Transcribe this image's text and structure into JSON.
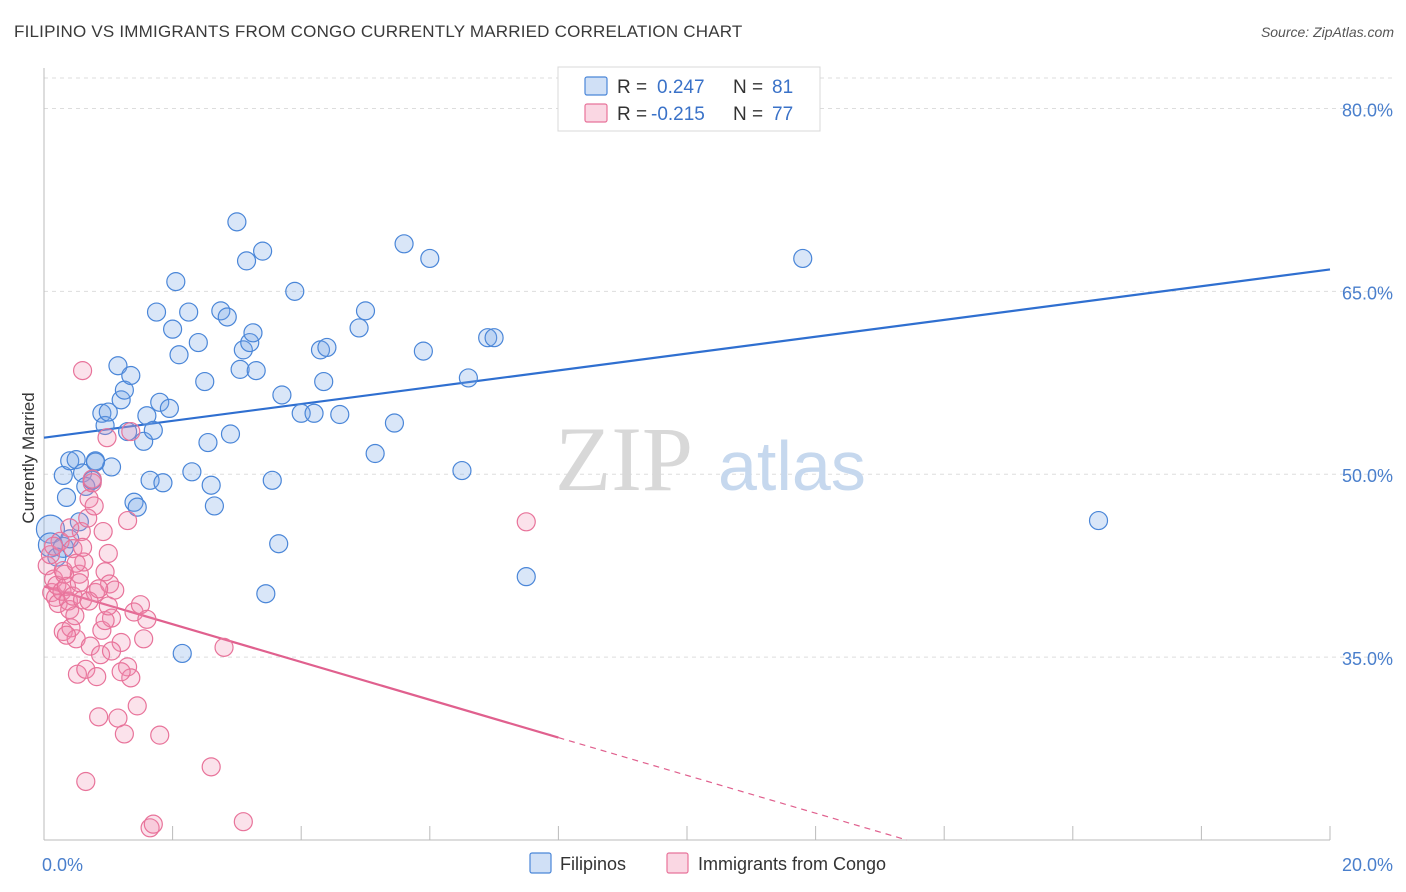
{
  "title": "FILIPINO VS IMMIGRANTS FROM CONGO CURRENTLY MARRIED CORRELATION CHART",
  "source": "Source: ZipAtlas.com",
  "watermark": {
    "zip": "ZIP",
    "atlas": "atlas"
  },
  "colors": {
    "blue": "#4a86d8",
    "blue_fill": "rgba(120,165,230,0.28)",
    "blue_line": "#2f6fd0",
    "pink": "#e8739a",
    "pink_fill": "rgba(240,140,175,0.25)",
    "pink_line": "#e0608e",
    "grid": "#dddddd",
    "tick_text": "#4a7fcc"
  },
  "legend": {
    "rows": [
      {
        "r_label": "R =",
        "r_value": "0.247",
        "n_label": "N =",
        "n_value": "81"
      },
      {
        "r_label": "R =",
        "r_value": "-0.215",
        "n_label": "N =",
        "n_value": "77"
      }
    ]
  },
  "chart_data": {
    "type": "scatter",
    "title": "FILIPINO VS IMMIGRANTS FROM CONGO CURRENTLY MARRIED CORRELATION CHART",
    "xlabel": "",
    "ylabel": "Currently Married",
    "xlim": [
      0,
      20
    ],
    "ylim": [
      20,
      82.5
    ],
    "x_tick_labels": [
      {
        "value": 0,
        "label": "0.0%"
      },
      {
        "value": 20,
        "label": "20.0%"
      }
    ],
    "y_tick_labels": [
      {
        "value": 35,
        "label": "35.0%"
      },
      {
        "value": 50,
        "label": "50.0%"
      },
      {
        "value": 65,
        "label": "65.0%"
      },
      {
        "value": 80,
        "label": "80.0%"
      }
    ],
    "x_minor_ticks": [
      0,
      2,
      4,
      6,
      8,
      10,
      12,
      14,
      16,
      18,
      20
    ],
    "series": [
      {
        "name": "Filipinos",
        "color": "blue",
        "trend": {
          "x1": 0,
          "y1": 53.0,
          "x2": 20,
          "y2": 66.8,
          "dashed_from": null
        },
        "points": [
          [
            0.1,
            45.5,
            14
          ],
          [
            0.1,
            44.2,
            12
          ],
          [
            0.3,
            44.0,
            10
          ],
          [
            0.4,
            44.7,
            9
          ],
          [
            0.3,
            49.9,
            9
          ],
          [
            0.35,
            48.1,
            9
          ],
          [
            0.4,
            51.1,
            9
          ],
          [
            0.5,
            51.2,
            9
          ],
          [
            0.6,
            50.1,
            9
          ],
          [
            0.55,
            46.1,
            9
          ],
          [
            0.65,
            49.0,
            9
          ],
          [
            0.75,
            49.5,
            9
          ],
          [
            0.8,
            51.1,
            9
          ],
          [
            0.9,
            55.0,
            9
          ],
          [
            0.95,
            54.0,
            9
          ],
          [
            1.0,
            55.1,
            9
          ],
          [
            1.05,
            50.6,
            9
          ],
          [
            1.15,
            58.9,
            9
          ],
          [
            1.2,
            56.1,
            9
          ],
          [
            1.25,
            56.9,
            9
          ],
          [
            1.3,
            53.5,
            9
          ],
          [
            1.35,
            58.1,
            9
          ],
          [
            1.4,
            47.7,
            9
          ],
          [
            1.45,
            47.3,
            9
          ],
          [
            1.55,
            52.7,
            9
          ],
          [
            1.6,
            54.8,
            9
          ],
          [
            1.65,
            49.5,
            9
          ],
          [
            1.7,
            53.6,
            9
          ],
          [
            1.75,
            63.3,
            9
          ],
          [
            1.8,
            55.9,
            9
          ],
          [
            1.85,
            49.3,
            9
          ],
          [
            1.95,
            55.4,
            9
          ],
          [
            2.0,
            61.9,
            9
          ],
          [
            2.05,
            65.8,
            9
          ],
          [
            2.1,
            59.8,
            9
          ],
          [
            2.15,
            35.3,
            9
          ],
          [
            2.25,
            63.3,
            9
          ],
          [
            2.3,
            50.2,
            9
          ],
          [
            2.4,
            60.8,
            9
          ],
          [
            2.5,
            57.6,
            9
          ],
          [
            2.55,
            52.6,
            9
          ],
          [
            2.6,
            49.1,
            9
          ],
          [
            2.65,
            47.4,
            9
          ],
          [
            2.75,
            63.4,
            9
          ],
          [
            2.85,
            62.9,
            9
          ],
          [
            2.9,
            53.3,
            9
          ],
          [
            3.0,
            70.7,
            9
          ],
          [
            3.05,
            58.6,
            9
          ],
          [
            3.1,
            60.2,
            9
          ],
          [
            3.15,
            67.5,
            9
          ],
          [
            3.2,
            60.8,
            9
          ],
          [
            3.25,
            61.6,
            9
          ],
          [
            3.3,
            58.5,
            9
          ],
          [
            3.4,
            68.3,
            9
          ],
          [
            3.45,
            40.2,
            9
          ],
          [
            3.55,
            49.5,
            9
          ],
          [
            3.65,
            44.3,
            9
          ],
          [
            3.7,
            56.5,
            9
          ],
          [
            3.9,
            65.0,
            9
          ],
          [
            4.0,
            55.0,
            9
          ],
          [
            4.2,
            55.0,
            9
          ],
          [
            4.3,
            60.2,
            9
          ],
          [
            4.35,
            57.6,
            9
          ],
          [
            4.4,
            60.4,
            9
          ],
          [
            4.6,
            54.9,
            9
          ],
          [
            4.9,
            62.0,
            9
          ],
          [
            5.0,
            63.4,
            9
          ],
          [
            5.15,
            51.7,
            9
          ],
          [
            5.45,
            54.2,
            9
          ],
          [
            5.6,
            68.9,
            9
          ],
          [
            5.9,
            60.1,
            9
          ],
          [
            6.0,
            67.7,
            9
          ],
          [
            6.5,
            50.3,
            9
          ],
          [
            6.6,
            57.9,
            9
          ],
          [
            6.9,
            61.2,
            9
          ],
          [
            7.0,
            61.2,
            9
          ],
          [
            7.5,
            41.6,
            9
          ],
          [
            11.8,
            67.7,
            9
          ],
          [
            16.4,
            46.2,
            9
          ],
          [
            0.2,
            43.2,
            9
          ],
          [
            0.8,
            51.0,
            9
          ]
        ]
      },
      {
        "name": "Immigrants from Congo",
        "color": "pink",
        "trend": {
          "x1": 0,
          "y1": 40.8,
          "x2": 8,
          "y2": 28.4,
          "dash_x2": 20,
          "dash_y2": 9.8
        },
        "points": [
          [
            0.05,
            42.5,
            9
          ],
          [
            0.1,
            43.4,
            9
          ],
          [
            0.12,
            40.3,
            9
          ],
          [
            0.15,
            41.4,
            9
          ],
          [
            0.18,
            39.9,
            9
          ],
          [
            0.2,
            40.9,
            9
          ],
          [
            0.22,
            39.4,
            9
          ],
          [
            0.25,
            44.5,
            9
          ],
          [
            0.28,
            40.4,
            9
          ],
          [
            0.3,
            37.1,
            9
          ],
          [
            0.32,
            41.8,
            9
          ],
          [
            0.35,
            40.8,
            9
          ],
          [
            0.38,
            39.6,
            9
          ],
          [
            0.4,
            38.9,
            9
          ],
          [
            0.42,
            37.4,
            9
          ],
          [
            0.45,
            40.0,
            9
          ],
          [
            0.48,
            38.4,
            9
          ],
          [
            0.5,
            36.5,
            9
          ],
          [
            0.52,
            33.6,
            9
          ],
          [
            0.55,
            41.8,
            9
          ],
          [
            0.58,
            45.3,
            9
          ],
          [
            0.6,
            39.7,
            9
          ],
          [
            0.62,
            42.8,
            9
          ],
          [
            0.65,
            34.0,
            9
          ],
          [
            0.68,
            46.4,
            9
          ],
          [
            0.7,
            48.0,
            9
          ],
          [
            0.72,
            35.9,
            9
          ],
          [
            0.75,
            49.3,
            9
          ],
          [
            0.78,
            47.4,
            9
          ],
          [
            0.8,
            40.3,
            9
          ],
          [
            0.82,
            33.4,
            9
          ],
          [
            0.85,
            30.1,
            9
          ],
          [
            0.88,
            35.2,
            9
          ],
          [
            0.9,
            37.2,
            9
          ],
          [
            0.92,
            45.3,
            9
          ],
          [
            0.95,
            42.0,
            9
          ],
          [
            0.98,
            53.0,
            9
          ],
          [
            1.0,
            43.5,
            9
          ],
          [
            1.02,
            41.0,
            9
          ],
          [
            1.05,
            38.2,
            9
          ],
          [
            1.1,
            40.5,
            9
          ],
          [
            1.15,
            30.0,
            9
          ],
          [
            1.2,
            36.2,
            9
          ],
          [
            1.25,
            28.7,
            9
          ],
          [
            1.3,
            34.2,
            9
          ],
          [
            1.35,
            33.3,
            9
          ],
          [
            1.4,
            38.7,
            9
          ],
          [
            1.45,
            31.0,
            9
          ],
          [
            1.5,
            39.3,
            9
          ],
          [
            1.55,
            36.5,
            9
          ],
          [
            1.6,
            38.1,
            9
          ],
          [
            1.65,
            21.0,
            9
          ],
          [
            1.7,
            21.3,
            9
          ],
          [
            1.8,
            28.6,
            9
          ],
          [
            0.6,
            58.5,
            9
          ],
          [
            0.65,
            24.8,
            9
          ],
          [
            1.3,
            46.2,
            9
          ],
          [
            1.35,
            53.5,
            9
          ],
          [
            0.75,
            49.6,
            9
          ],
          [
            2.6,
            26.0,
            9
          ],
          [
            2.8,
            35.8,
            9
          ],
          [
            3.1,
            21.5,
            9
          ],
          [
            7.5,
            46.1,
            9
          ],
          [
            0.15,
            44.1,
            9
          ],
          [
            0.3,
            42.1,
            9
          ],
          [
            0.45,
            43.9,
            9
          ],
          [
            0.55,
            41.1,
            9
          ],
          [
            0.7,
            39.6,
            9
          ],
          [
            0.85,
            40.6,
            9
          ],
          [
            0.95,
            38.0,
            9
          ],
          [
            1.05,
            35.5,
            9
          ],
          [
            1.2,
            33.8,
            9
          ],
          [
            0.4,
            45.6,
            9
          ],
          [
            0.5,
            42.7,
            9
          ],
          [
            0.35,
            36.8,
            9
          ],
          [
            1.0,
            39.2,
            9
          ],
          [
            0.6,
            44.0,
            9
          ]
        ]
      }
    ],
    "legend_position": "top-center"
  },
  "bottom_legend": [
    {
      "label": "Filipinos",
      "color": "blue"
    },
    {
      "label": "Immigrants from Congo",
      "color": "pink"
    }
  ]
}
